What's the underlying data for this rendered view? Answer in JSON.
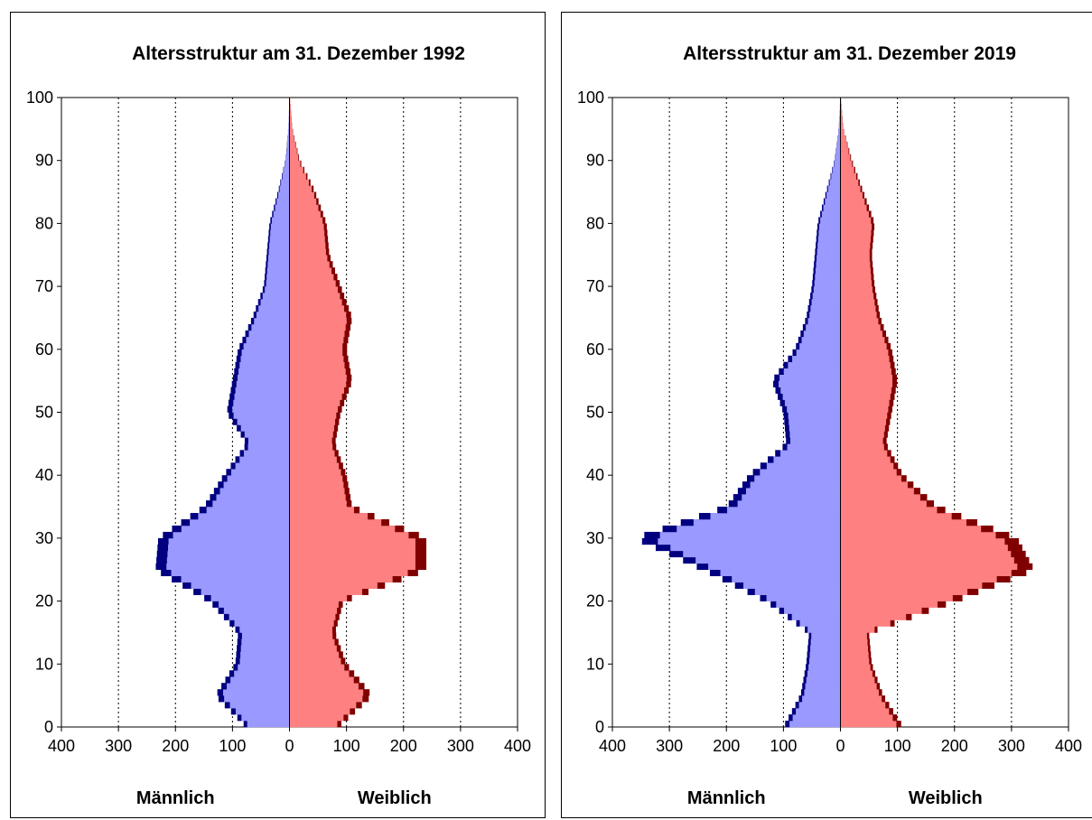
{
  "chart_data": [
    {
      "type": "bar",
      "orientation": "horizontal",
      "title": "Altersstruktur am 31. Dezember 1992",
      "y_ticks": [
        "0",
        "10",
        "20",
        "30",
        "40",
        "50",
        "60",
        "70",
        "80",
        "90",
        "100"
      ],
      "x_ticks": [
        "400",
        "300",
        "200",
        "100",
        "0",
        "100",
        "200",
        "300",
        "400"
      ],
      "ylim": [
        0,
        100
      ],
      "xlim": [
        -400,
        400
      ],
      "grid": "vertical dotted",
      "left_label": "Männlich",
      "right_label": "Weiblich",
      "colors": {
        "male_fill": "#9999ff",
        "male_excess": "#000080",
        "female_fill": "#ff8080",
        "female_excess": "#800000"
      },
      "series": [
        {
          "name": "Männlich",
          "ages": [
            0,
            5,
            10,
            15,
            20,
            25,
            30,
            35,
            40,
            45,
            50,
            55,
            60,
            65,
            70,
            75,
            80,
            85,
            90,
            95,
            100
          ],
          "values": [
            75,
            130,
            95,
            90,
            140,
            235,
            230,
            150,
            115,
            75,
            110,
            100,
            90,
            65,
            45,
            40,
            35,
            20,
            7,
            2,
            0
          ]
        },
        {
          "name": "Weiblich",
          "ages": [
            0,
            5,
            10,
            15,
            20,
            25,
            30,
            35,
            40,
            45,
            50,
            55,
            60,
            65,
            70,
            75,
            80,
            85,
            90,
            95,
            100
          ],
          "values": [
            85,
            145,
            100,
            80,
            95,
            240,
            240,
            110,
            100,
            80,
            90,
            110,
            100,
            110,
            90,
            70,
            65,
            45,
            18,
            5,
            1
          ]
        }
      ]
    },
    {
      "type": "bar",
      "orientation": "horizontal",
      "title": "Altersstruktur am 31. Dezember 2019",
      "y_ticks": [
        "0",
        "10",
        "20",
        "30",
        "40",
        "50",
        "60",
        "70",
        "80",
        "90",
        "100"
      ],
      "x_ticks": [
        "400",
        "300",
        "200",
        "100",
        "0",
        "100",
        "200",
        "300",
        "400"
      ],
      "ylim": [
        0,
        100
      ],
      "xlim": [
        -400,
        400
      ],
      "grid": "vertical dotted",
      "left_label": "Männlich",
      "right_label": "Weiblich",
      "colors": {
        "male_fill": "#9999ff",
        "male_excess": "#000080",
        "female_fill": "#ff8080",
        "female_excess": "#800000"
      },
      "series": [
        {
          "name": "Männlich",
          "ages": [
            0,
            5,
            10,
            15,
            20,
            25,
            30,
            35,
            40,
            45,
            50,
            55,
            60,
            65,
            70,
            75,
            80,
            85,
            90,
            95,
            100
          ],
          "values": [
            100,
            70,
            60,
            55,
            130,
            240,
            360,
            200,
            160,
            95,
            100,
            120,
            80,
            60,
            50,
            45,
            40,
            25,
            10,
            3,
            0
          ]
        },
        {
          "name": "Weiblich",
          "ages": [
            0,
            5,
            10,
            15,
            20,
            25,
            30,
            35,
            40,
            45,
            50,
            55,
            60,
            65,
            70,
            75,
            80,
            85,
            90,
            95,
            100
          ],
          "values": [
            110,
            75,
            55,
            50,
            200,
            340,
            310,
            170,
            110,
            80,
            90,
            100,
            90,
            70,
            60,
            55,
            60,
            40,
            20,
            5,
            1
          ]
        }
      ]
    }
  ]
}
